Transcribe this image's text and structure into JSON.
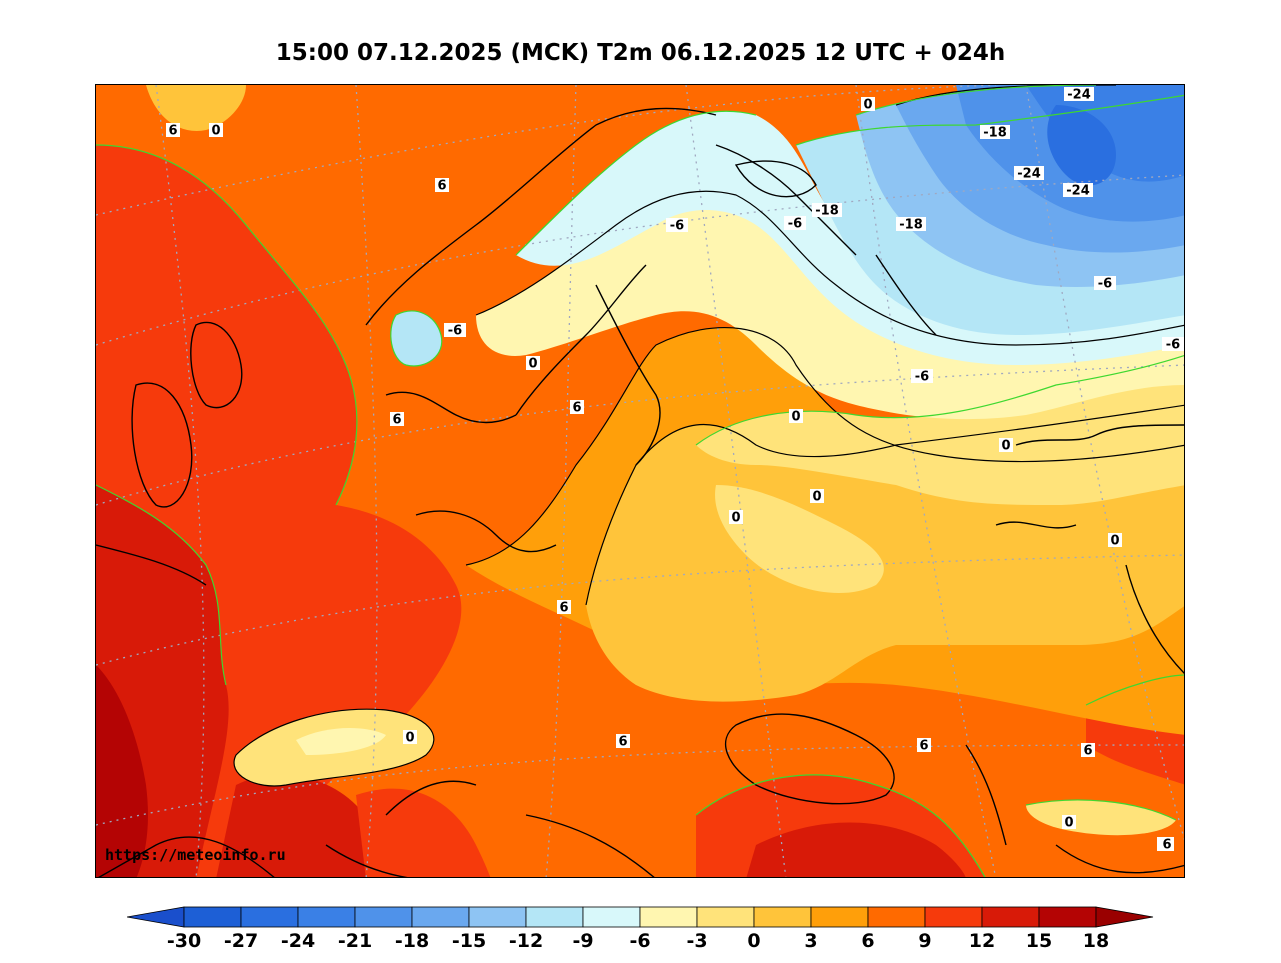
{
  "title": "15:00 07.12.2025 (MCK) T2m 06.12.2025 12 UTC + 024h",
  "watermark": "https://meteoinfo.ru",
  "colorbar": {
    "ticks": [
      "-30",
      "-27",
      "-24",
      "-21",
      "-18",
      "-15",
      "-12",
      "-9",
      "-6",
      "-3",
      "0",
      "3",
      "6",
      "9",
      "12",
      "15",
      "18"
    ],
    "colors": [
      "#1d5fd6",
      "#2a6fe0",
      "#3a80e6",
      "#4f92ea",
      "#6aa8ef",
      "#8ec4f3",
      "#b4e6f6",
      "#d8f8fa",
      "#fff6b0",
      "#ffe37a",
      "#ffc43a",
      "#ff9f0a",
      "#ff6a00",
      "#f63a0c",
      "#d81a08",
      "#b40404"
    ],
    "low_arrow": "#1a4fcc",
    "high_arrow": "#9a0000"
  },
  "contour_labels": [
    {
      "text": "0"
    },
    {
      "text": "6"
    },
    {
      "text": "6"
    },
    {
      "text": "0"
    },
    {
      "text": "-6"
    },
    {
      "text": "-6"
    },
    {
      "text": "-6"
    },
    {
      "text": "-18"
    },
    {
      "text": "-24"
    },
    {
      "text": "-24"
    },
    {
      "text": "-24"
    },
    {
      "text": "-18"
    },
    {
      "text": "-18"
    },
    {
      "text": "-6"
    },
    {
      "text": "-6"
    },
    {
      "text": "-6"
    },
    {
      "text": "0"
    },
    {
      "text": "0"
    },
    {
      "text": "6"
    },
    {
      "text": "6"
    },
    {
      "text": "0"
    },
    {
      "text": "0"
    },
    {
      "text": "0"
    },
    {
      "text": "0"
    },
    {
      "text": "0"
    },
    {
      "text": "6"
    },
    {
      "text": "0"
    },
    {
      "text": "6"
    },
    {
      "text": "6"
    },
    {
      "text": "6"
    },
    {
      "text": "0"
    },
    {
      "text": "6"
    }
  ]
}
